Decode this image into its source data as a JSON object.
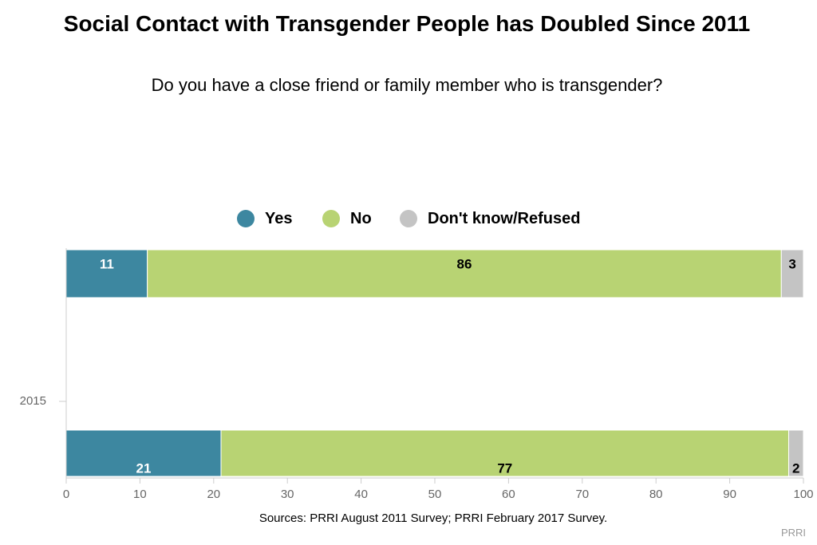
{
  "title": "Social Contact with Transgender People has Doubled Since 2011",
  "subtitle": "Do you have a close friend or family member who is transgender?",
  "source": "Sources: PRRI August 2011 Survey; PRRI February 2017 Survey.",
  "credit": "PRRI",
  "colors": {
    "yes": "#3d87a0",
    "no": "#b8d373",
    "dk": "#c4c4c4",
    "axis": "#cccccc",
    "tick_text": "#666666"
  },
  "chart_data": {
    "type": "bar",
    "orientation": "horizontal",
    "stacked": true,
    "categories": [
      "",
      "2015"
    ],
    "series": [
      {
        "name": "Yes",
        "values": [
          11,
          21
        ]
      },
      {
        "name": "No",
        "values": [
          86,
          77
        ]
      },
      {
        "name": "Don't know/Refused",
        "values": [
          3,
          2
        ]
      }
    ],
    "xlim": [
      0,
      100
    ],
    "xticks": [
      0,
      10,
      20,
      30,
      40,
      50,
      60,
      70,
      80,
      90,
      100
    ],
    "legend_position": "top"
  }
}
